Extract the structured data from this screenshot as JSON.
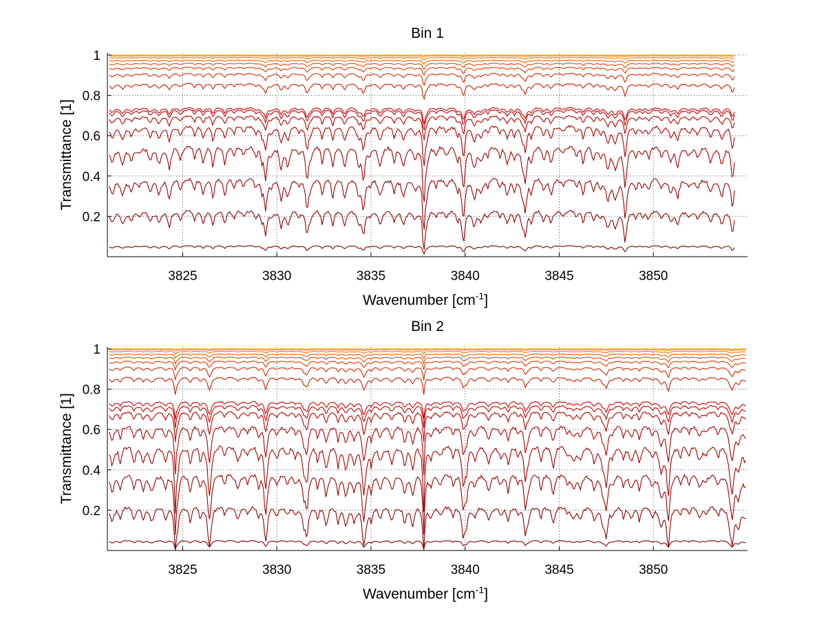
{
  "figure": {
    "background": "#ffffff"
  },
  "chart_data": [
    {
      "type": "line",
      "title": "Bin 1",
      "xlabel": "Wavenumber [cm",
      "xlabel_sup": "-1",
      "xlabel_end": "]",
      "ylabel": "Transmittance [1]",
      "xlim": [
        3821,
        3855
      ],
      "ylim": [
        0,
        1.01
      ],
      "xticks": [
        3825,
        3830,
        3835,
        3840,
        3845,
        3850
      ],
      "yticks": [
        0.2,
        0.4,
        0.6,
        0.8,
        1
      ],
      "ytick_labels": [
        "0.2",
        "0.4",
        "0.6",
        "0.8",
        "1"
      ],
      "grid": true,
      "x_start": 3821.1,
      "x_end": 3854.3,
      "lines": {
        "deep": [
          3837.8
        ],
        "medium": [
          3829.4,
          3831.6,
          3834.6,
          3839.9,
          3843.2,
          3848.5,
          3854.2
        ]
      },
      "series": [
        {
          "baseline": 0.0,
          "depth": 0.0,
          "color": "#6b0000"
        },
        {
          "baseline": 0.055,
          "depth": 0.02,
          "color": "#7a0000"
        },
        {
          "baseline": 0.23,
          "depth": 0.1,
          "color": "#8a0000"
        },
        {
          "baseline": 0.39,
          "depth": 0.13,
          "color": "#960000"
        },
        {
          "baseline": 0.55,
          "depth": 0.14,
          "color": "#a00000"
        },
        {
          "baseline": 0.65,
          "depth": 0.1,
          "color": "#aa0000"
        },
        {
          "baseline": 0.7,
          "depth": 0.06,
          "color": "#b40000"
        },
        {
          "baseline": 0.73,
          "depth": 0.05,
          "color": "#c00000"
        },
        {
          "baseline": 0.74,
          "depth": 0.04,
          "color": "#cc0000"
        },
        {
          "baseline": 0.86,
          "depth": 0.04,
          "color": "#c81e00"
        },
        {
          "baseline": 0.91,
          "depth": 0.03,
          "color": "#d42a00"
        },
        {
          "baseline": 0.94,
          "depth": 0.02,
          "color": "#dc3a00"
        },
        {
          "baseline": 0.96,
          "depth": 0.015,
          "color": "#e44a00"
        },
        {
          "baseline": 0.975,
          "depth": 0.01,
          "color": "#ec5c00"
        },
        {
          "baseline": 0.988,
          "depth": 0.006,
          "color": "#f27000"
        },
        {
          "baseline": 0.996,
          "depth": 0.003,
          "color": "#f88800"
        },
        {
          "baseline": 1.0,
          "depth": 0.002,
          "color": "#ffa000"
        }
      ]
    },
    {
      "type": "line",
      "title": "Bin 2",
      "xlabel": "Wavenumber [cm",
      "xlabel_sup": "-1",
      "xlabel_end": "]",
      "ylabel": "Transmittance [1]",
      "xlim": [
        3821,
        3855
      ],
      "ylim": [
        0,
        1.01
      ],
      "xticks": [
        3825,
        3830,
        3835,
        3840,
        3845,
        3850
      ],
      "yticks": [
        0.2,
        0.4,
        0.6,
        0.8,
        1
      ],
      "ytick_labels": [
        "0.2",
        "0.4",
        "0.6",
        "0.8",
        "1"
      ],
      "grid": true,
      "x_start": 3821.1,
      "x_end": 3854.9,
      "lines": {
        "deep": [
          3824.6,
          3837.8
        ],
        "medium": [
          3826.4,
          3829.4,
          3831.6,
          3834.6,
          3839.9,
          3843.2,
          3847.5,
          3850.8,
          3854.2
        ]
      },
      "series": [
        {
          "baseline": 0.0,
          "depth": 0.0,
          "color": "#6b0000"
        },
        {
          "baseline": 0.05,
          "depth": 0.02,
          "color": "#7a0000"
        },
        {
          "baseline": 0.22,
          "depth": 0.12,
          "color": "#8a0000"
        },
        {
          "baseline": 0.38,
          "depth": 0.14,
          "color": "#960000"
        },
        {
          "baseline": 0.52,
          "depth": 0.15,
          "color": "#a00000"
        },
        {
          "baseline": 0.62,
          "depth": 0.11,
          "color": "#aa0000"
        },
        {
          "baseline": 0.69,
          "depth": 0.07,
          "color": "#b40000"
        },
        {
          "baseline": 0.72,
          "depth": 0.05,
          "color": "#c00000"
        },
        {
          "baseline": 0.74,
          "depth": 0.04,
          "color": "#cc0000"
        },
        {
          "baseline": 0.86,
          "depth": 0.04,
          "color": "#c81e00"
        },
        {
          "baseline": 0.91,
          "depth": 0.03,
          "color": "#d42a00"
        },
        {
          "baseline": 0.94,
          "depth": 0.02,
          "color": "#dc3a00"
        },
        {
          "baseline": 0.96,
          "depth": 0.015,
          "color": "#e44a00"
        },
        {
          "baseline": 0.975,
          "depth": 0.01,
          "color": "#ec5c00"
        },
        {
          "baseline": 0.988,
          "depth": 0.006,
          "color": "#f27000"
        },
        {
          "baseline": 0.996,
          "depth": 0.003,
          "color": "#f88800"
        },
        {
          "baseline": 1.0,
          "depth": 0.002,
          "color": "#ffa000"
        }
      ]
    }
  ]
}
